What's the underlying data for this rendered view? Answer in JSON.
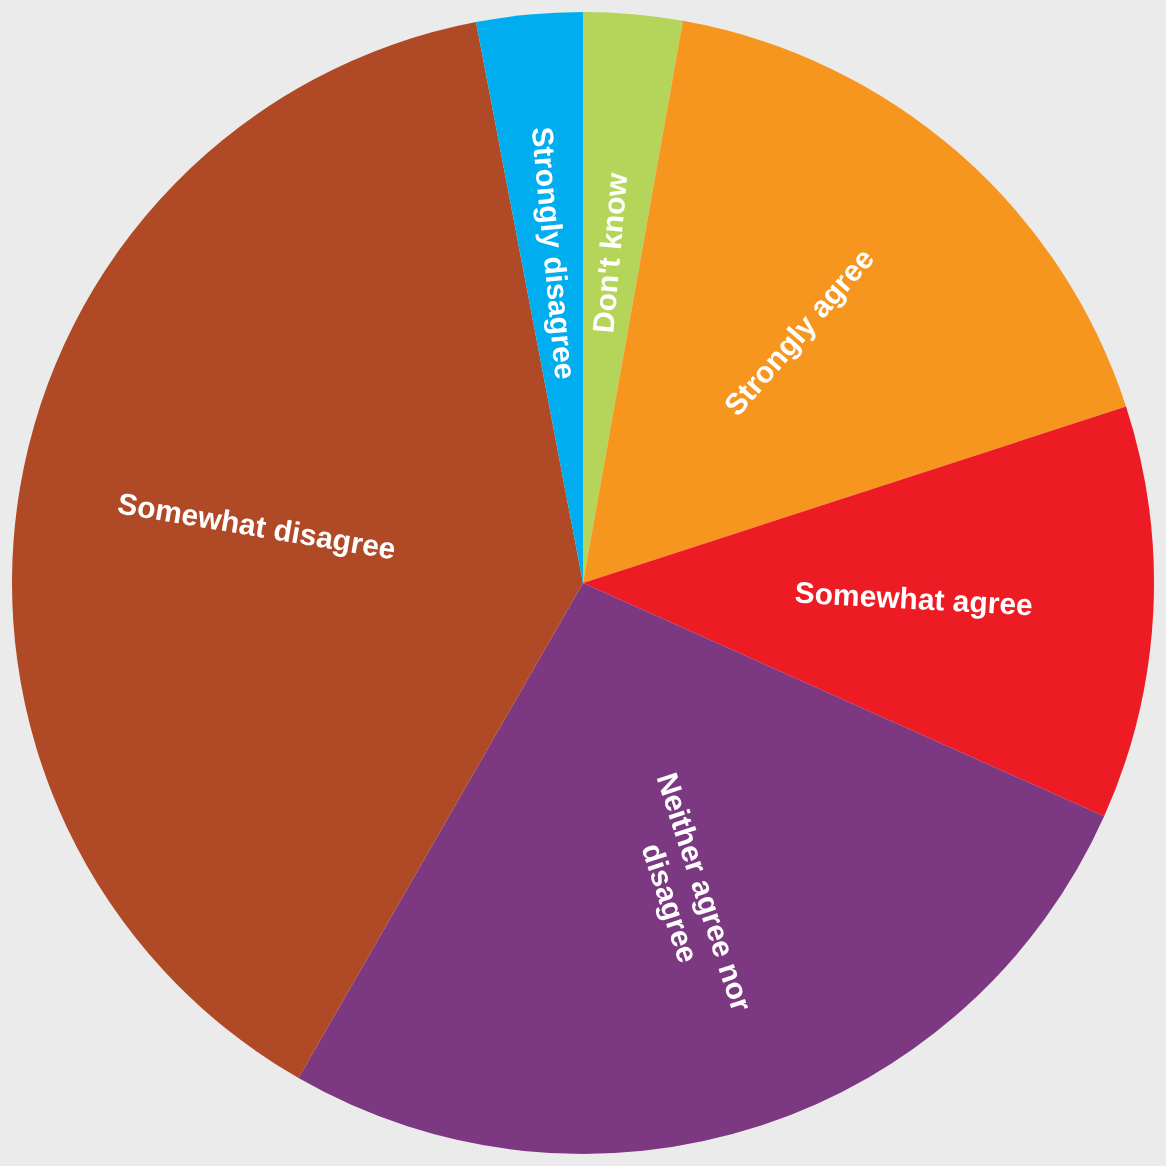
{
  "chart_data": {
    "type": "pie",
    "categories": [
      "Don't know",
      "Strongly agree",
      "Somewhat agree",
      "Neither agree nor disagree",
      "Somewhat disagree",
      "Strongly disagree"
    ],
    "values": [
      2.8,
      17.2,
      11.7,
      26.6,
      38.7,
      3.0
    ],
    "colors": [
      "#b5d55a",
      "#f7961f",
      "#ed1c24",
      "#7d3882",
      "#b04a26",
      "#00aeef"
    ],
    "legend": false
  }
}
